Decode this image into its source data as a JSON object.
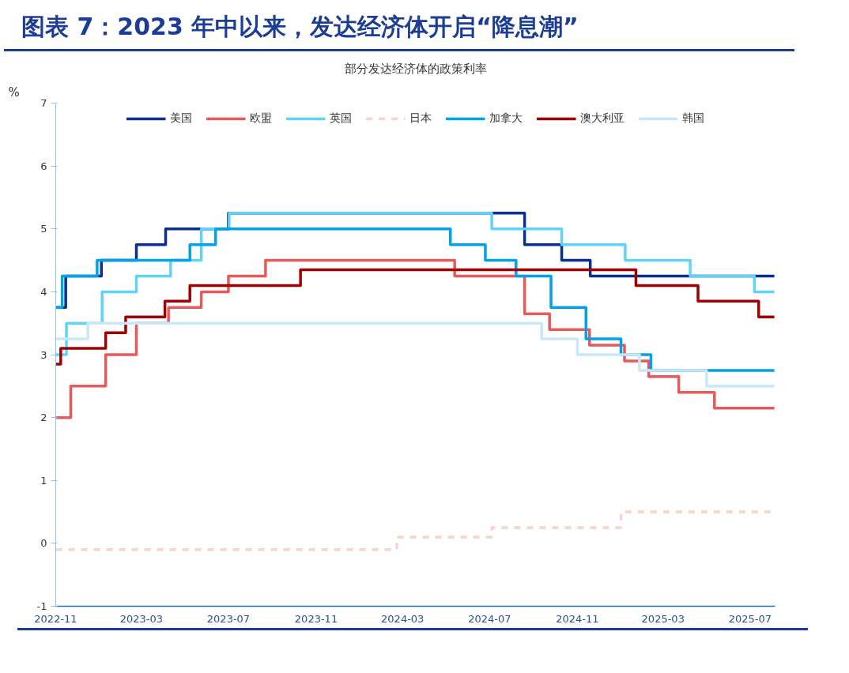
{
  "chart_data": {
    "type": "step",
    "title": "图表 7：2023 年中以来，发达经济体开启“降息潮”",
    "subtitle": "部分发达经济体的政策利率",
    "ylabel": "%",
    "xlim": [
      "2022-11-01",
      "2025-08-05"
    ],
    "xticks": [
      "2022-11",
      "2023-03",
      "2023-07",
      "2023-11",
      "2024-03",
      "2024-07",
      "2024-11",
      "2025-03",
      "2025-07"
    ],
    "ylim": [
      -1,
      7
    ],
    "yticks": [
      -1,
      0,
      1,
      2,
      3,
      4,
      5,
      6,
      7
    ],
    "grid": false,
    "legend": "top",
    "series": [
      {
        "name": "美国",
        "color": "#0a2f8f",
        "x": [
          "2022-11-01",
          "2022-11-15",
          "2023-01-04",
          "2023-02-22",
          "2023-04-04",
          "2023-07-01",
          "2024-08-19",
          "2024-10-10",
          "2024-11-19",
          "2025-08-04"
        ],
        "values": [
          3.75,
          4.25,
          4.5,
          4.75,
          5.0,
          5.25,
          4.75,
          4.5,
          4.25,
          4.25
        ]
      },
      {
        "name": "欧盟",
        "color": "#e8595a",
        "x": [
          "2022-11-01",
          "2022-11-22",
          "2023-01-10",
          "2023-02-22",
          "2023-04-08",
          "2023-05-24",
          "2023-07-01",
          "2023-08-22",
          "2024-05-13",
          "2024-08-19",
          "2024-09-23",
          "2024-11-18",
          "2025-01-06",
          "2025-02-09",
          "2025-03-23",
          "2025-05-12",
          "2025-08-04"
        ],
        "values": [
          2.0,
          2.5,
          3.0,
          3.5,
          3.75,
          4.0,
          4.25,
          4.5,
          4.25,
          3.65,
          3.4,
          3.15,
          2.9,
          2.65,
          2.4,
          2.15,
          2.15
        ]
      },
      {
        "name": "英国",
        "color": "#5fd3f8",
        "x": [
          "2022-11-01",
          "2022-11-16",
          "2023-01-05",
          "2023-02-22",
          "2023-04-11",
          "2023-05-24",
          "2023-07-02",
          "2024-07-04",
          "2024-10-10",
          "2025-01-07",
          "2025-04-08",
          "2025-07-07",
          "2025-08-04"
        ],
        "values": [
          3.0,
          3.5,
          4.0,
          4.25,
          4.5,
          5.0,
          5.25,
          5.0,
          4.75,
          4.5,
          4.25,
          4.0,
          4.0
        ]
      },
      {
        "name": "日本",
        "color": "#fad0cc",
        "line_style": "dashed",
        "x": [
          "2022-11-01",
          "2024-02-22",
          "2024-07-04",
          "2025-01-01",
          "2025-08-04"
        ],
        "values": [
          -0.1,
          0.1,
          0.25,
          0.5,
          0.5
        ]
      },
      {
        "name": "加拿大",
        "color": "#00a3e8",
        "x": [
          "2022-11-01",
          "2022-11-10",
          "2022-12-29",
          "2023-05-08",
          "2023-06-13",
          "2024-05-07",
          "2024-06-25",
          "2024-08-07",
          "2024-09-25",
          "2024-11-13",
          "2025-01-01",
          "2025-02-12",
          "2025-08-04"
        ],
        "values": [
          3.75,
          4.25,
          4.5,
          4.75,
          5.0,
          4.75,
          4.5,
          4.25,
          3.75,
          3.25,
          3.0,
          2.75,
          2.75
        ]
      },
      {
        "name": "澳大利亚",
        "color": "#a00000",
        "x": [
          "2022-11-01",
          "2022-11-08",
          "2023-01-10",
          "2023-02-07",
          "2023-04-03",
          "2023-05-08",
          "2023-10-10",
          "2025-01-22",
          "2025-04-19",
          "2025-07-13",
          "2025-08-04"
        ],
        "values": [
          2.85,
          3.1,
          3.35,
          3.6,
          3.85,
          4.1,
          4.35,
          4.1,
          3.85,
          3.6,
          3.6
        ]
      },
      {
        "name": "韩国",
        "color": "#c8e8f8",
        "x": [
          "2022-11-01",
          "2022-12-16",
          "2024-09-12",
          "2024-11-01",
          "2025-01-27",
          "2025-05-01",
          "2025-08-04"
        ],
        "values": [
          3.25,
          3.5,
          3.25,
          3.0,
          2.75,
          2.5,
          2.5
        ]
      }
    ]
  }
}
